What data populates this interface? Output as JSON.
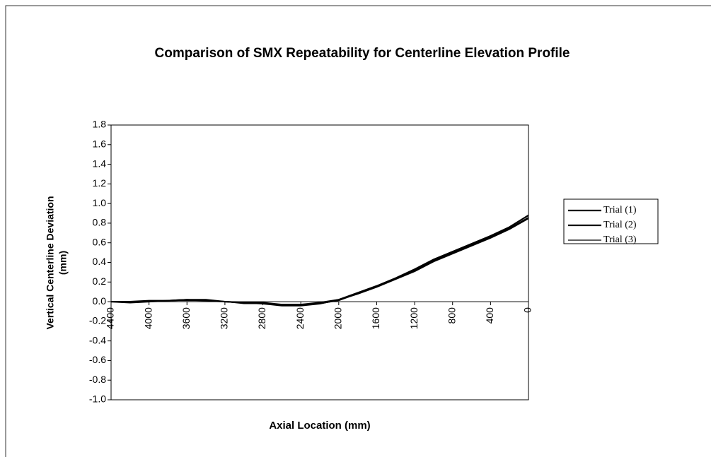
{
  "chart_data": {
    "type": "line",
    "title": "Comparison of SMX Repeatability for Centerline Elevation Profile",
    "xlabel": "Axial Location (mm)",
    "ylabel": [
      "Vertical Centerline Deviation",
      "(mm)"
    ],
    "x": [
      4400,
      4200,
      4000,
      3800,
      3600,
      3400,
      3200,
      3000,
      2800,
      2600,
      2400,
      2200,
      2000,
      1800,
      1600,
      1400,
      1200,
      1000,
      800,
      600,
      400,
      200,
      0
    ],
    "series": [
      {
        "name": "Trial (1)",
        "color": "#000000",
        "width": 2.2,
        "values": [
          0,
          0,
          0.01,
          0.01,
          0.02,
          0.01,
          0,
          -0.01,
          -0.02,
          -0.04,
          -0.04,
          -0.02,
          0.02,
          0.08,
          0.15,
          0.23,
          0.31,
          0.41,
          0.49,
          0.57,
          0.65,
          0.74,
          0.85
        ]
      },
      {
        "name": "Trial (2)",
        "color": "#000000",
        "width": 2.2,
        "values": [
          0,
          -0.01,
          0,
          0.01,
          0.02,
          0.02,
          0,
          -0.01,
          -0.01,
          -0.03,
          -0.03,
          -0.01,
          0.02,
          0.09,
          0.16,
          0.24,
          0.33,
          0.43,
          0.51,
          0.59,
          0.67,
          0.76,
          0.88
        ]
      },
      {
        "name": "Trial (3)",
        "color": "#000000",
        "width": 1.2,
        "values": [
          0,
          0,
          0.01,
          0.01,
          0.01,
          0.01,
          0,
          -0.02,
          -0.02,
          -0.03,
          -0.04,
          -0.02,
          0.01,
          0.08,
          0.15,
          0.24,
          0.32,
          0.42,
          0.5,
          0.58,
          0.66,
          0.75,
          0.86
        ]
      }
    ],
    "xlim": [
      4400,
      0
    ],
    "xticks": [
      4400,
      4000,
      3600,
      3200,
      2800,
      2400,
      2000,
      1600,
      1200,
      800,
      400,
      0
    ],
    "ylim": [
      -1.0,
      1.8
    ],
    "yticks": [
      1.8,
      1.6,
      1.4,
      1.2,
      {
        "value": 1,
        "label": "1.0"
      },
      0.8,
      0.6,
      0.4,
      0.2,
      {
        "value": 0,
        "label": "0.0"
      },
      -0.2,
      -0.4,
      -0.6,
      -0.8,
      {
        "value": -1,
        "label": "-1.0"
      }
    ],
    "legend": "right"
  }
}
